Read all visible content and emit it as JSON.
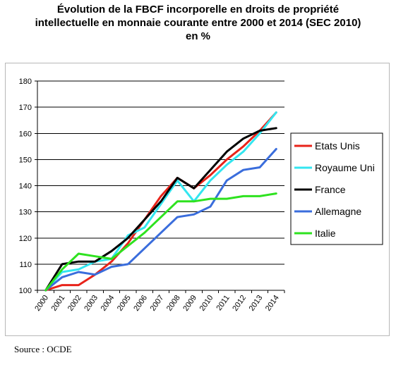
{
  "title_lines": [
    "Évolution de la FBCF incorporelle en droits de propriété",
    "intellectuelle  en monnaie courante entre 2000 et 2014 (SEC 2010)",
    "en %"
  ],
  "source": "Source : OCDE",
  "chart_data": {
    "type": "line",
    "title": "Évolution de la FBCF incorporelle en droits de propriété intellectuelle  en monnaie courante entre 2000 et 2014 (SEC 2010) en %",
    "xlabel": "",
    "ylabel": "",
    "x": [
      "2000",
      "2001",
      "2002",
      "2003",
      "2004",
      "2005",
      "2006",
      "2007",
      "2008",
      "2009",
      "2010",
      "2011",
      "2012",
      "2013",
      "2014"
    ],
    "ylim": [
      100,
      180
    ],
    "yticks": [
      100,
      110,
      120,
      130,
      140,
      150,
      160,
      170,
      180
    ],
    "grid": true,
    "legend_position": "right",
    "series": [
      {
        "name": "Etats Unis",
        "color": "#e8231a",
        "values": [
          100,
          102,
          102,
          106,
          111,
          118,
          127,
          136,
          143,
          139,
          144,
          150,
          155,
          161,
          168
        ]
      },
      {
        "name": "Royaume Uni",
        "color": "#33e6f0",
        "values": [
          100,
          107,
          108,
          111,
          112,
          121,
          124,
          133,
          142,
          134,
          142,
          148,
          153,
          160,
          168
        ]
      },
      {
        "name": "France",
        "color": "#000000",
        "values": [
          100,
          110,
          111,
          111,
          115,
          120,
          127,
          134,
          143,
          139,
          146,
          153,
          158,
          161,
          162
        ]
      },
      {
        "name": "Allemagne",
        "color": "#3a6ddc",
        "values": [
          100,
          105,
          107,
          106,
          109,
          110,
          116,
          122,
          128,
          129,
          132,
          142,
          146,
          147,
          154
        ]
      },
      {
        "name": "Italie",
        "color": "#2ee21f",
        "values": [
          100,
          108,
          114,
          113,
          112,
          117,
          122,
          128,
          134,
          134,
          135,
          135,
          136,
          136,
          137
        ]
      }
    ]
  }
}
